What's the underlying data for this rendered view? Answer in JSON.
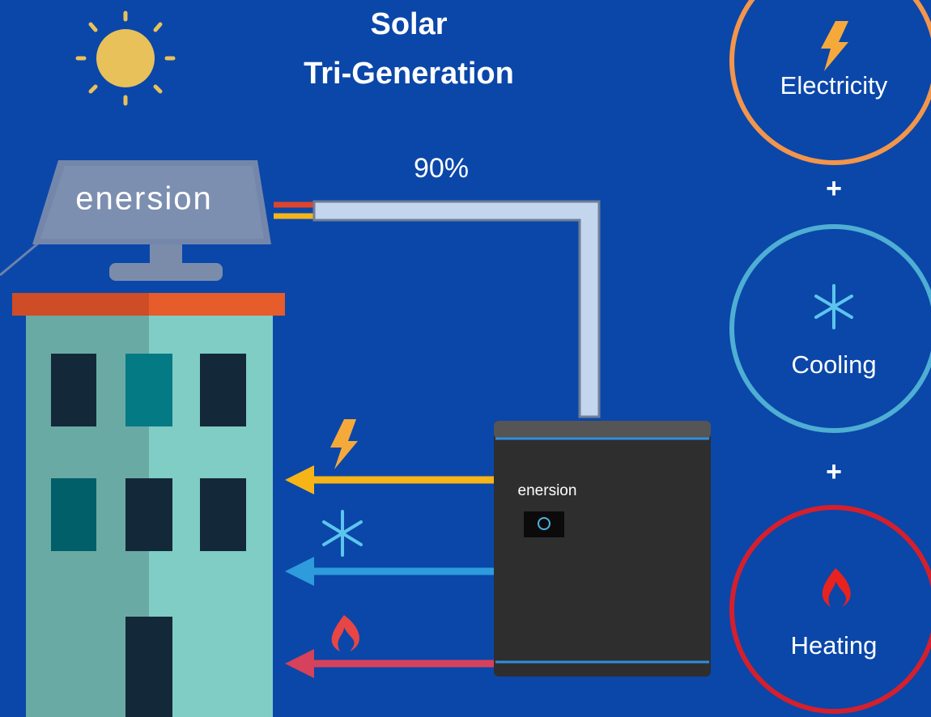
{
  "header": {
    "title": [
      "Solar",
      "Tri-Generation"
    ]
  },
  "diagram": {
    "efficiency": "90%",
    "panel_brand": "enersion",
    "unit_brand": "enersion",
    "outputs": [
      {
        "label": "Electricity"
      },
      {
        "label": "Cooling"
      },
      {
        "label": "Heating"
      }
    ],
    "connectors": [
      "+",
      "+"
    ]
  }
}
